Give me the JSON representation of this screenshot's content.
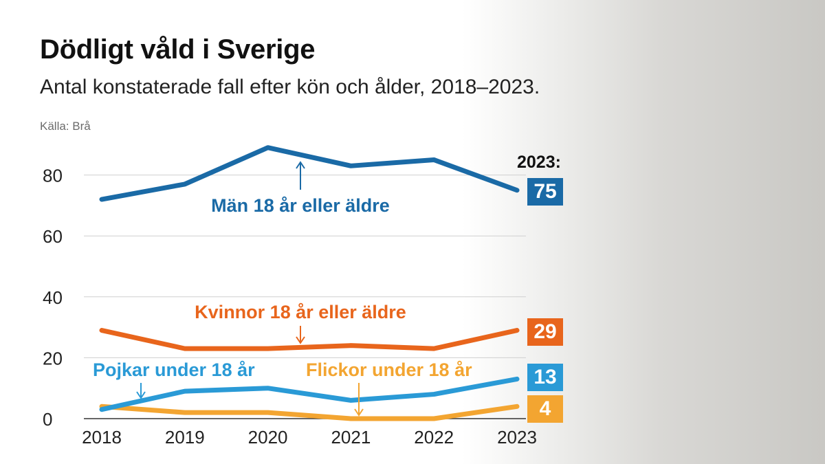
{
  "header": {
    "title": "Dödligt våld i Sverige",
    "subtitle": "Antal konstaterade fall efter kön och ålder, 2018–2023.",
    "source": "Källa: Brå"
  },
  "chart_data": {
    "type": "line",
    "x": [
      "2018",
      "2019",
      "2020",
      "2021",
      "2022",
      "2023"
    ],
    "ylim": [
      0,
      90
    ],
    "yticks": [
      0,
      20,
      40,
      60,
      80
    ],
    "grid": true,
    "legend": "inline labels",
    "end_label_header": "2023:",
    "series": [
      {
        "name": "Män 18 år eller äldre",
        "color": "#1a6aa6",
        "values": [
          72,
          77,
          89,
          83,
          85,
          75
        ],
        "end_label": "75"
      },
      {
        "name": "Kvinnor 18 år eller äldre",
        "color": "#e8651c",
        "values": [
          29,
          23,
          23,
          24,
          23,
          29
        ],
        "end_label": "29"
      },
      {
        "name": "Pojkar under 18 år",
        "color": "#2a9ad6",
        "values": [
          3,
          9,
          10,
          6,
          8,
          13
        ],
        "end_label": "13"
      },
      {
        "name": "Flickor under 18 år",
        "color": "#f3a531",
        "values": [
          4,
          2,
          2,
          0,
          0,
          4
        ],
        "end_label": "4"
      }
    ]
  }
}
